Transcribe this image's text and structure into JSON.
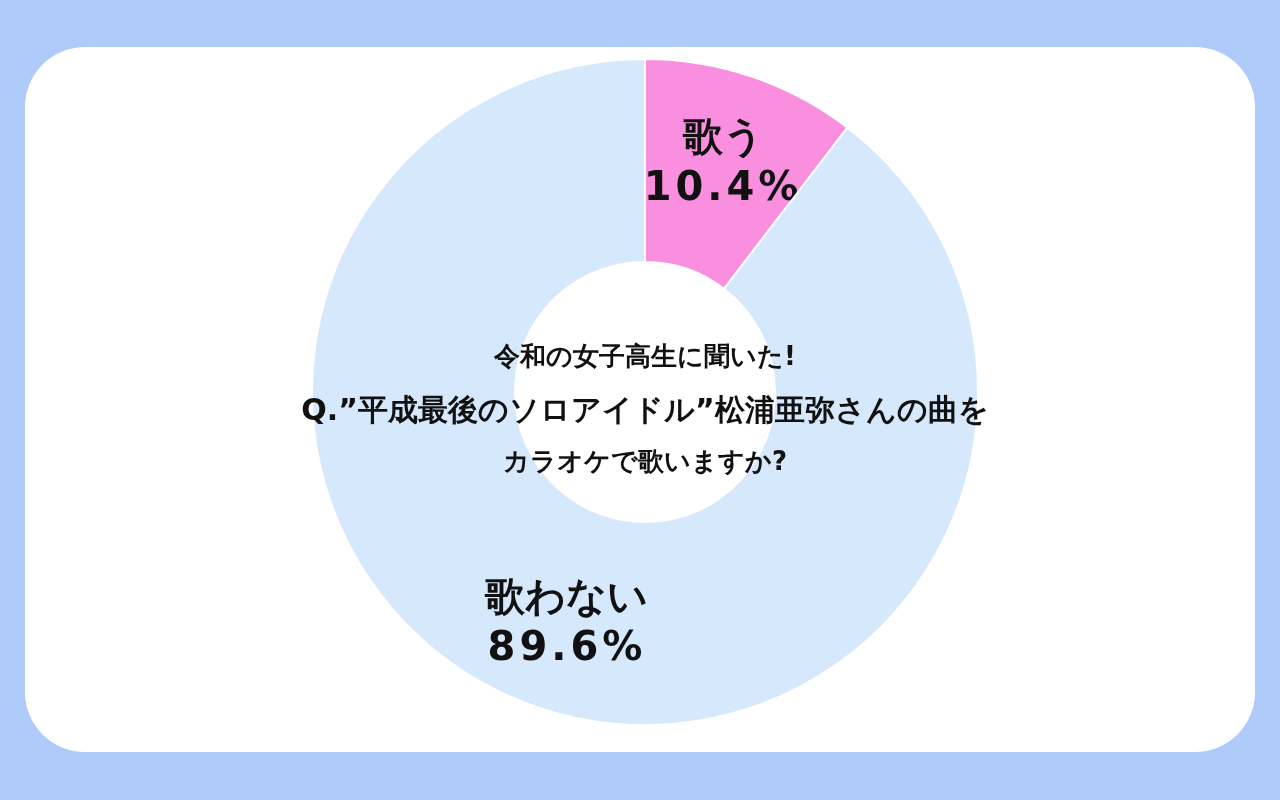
{
  "chart_data": {
    "type": "donut",
    "title": "令和の女子高生に聞いた!",
    "subtitle": "Q.”平成最後のソロアイドル”松浦亜弥さんの曲をカラオケで歌いますか?",
    "categories": [
      "歌う",
      "歌わない"
    ],
    "values": [
      10.4,
      89.6
    ],
    "colors": [
      "#fa8fe0",
      "#d6e8fc"
    ],
    "value_labels": [
      "10.4%",
      "89.6%"
    ]
  }
}
